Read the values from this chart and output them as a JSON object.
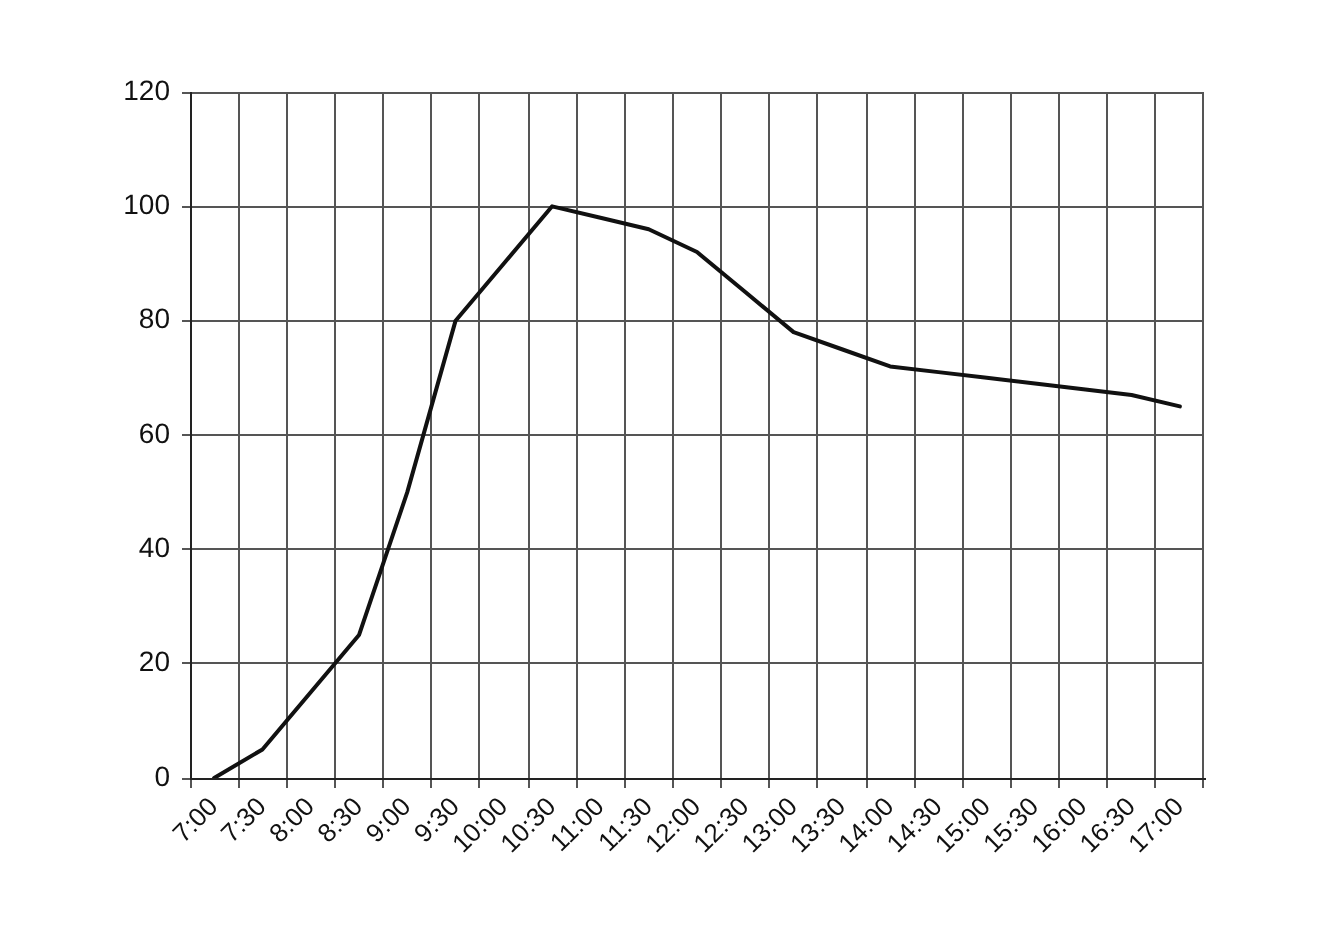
{
  "chart_data": {
    "type": "line",
    "categories": [
      "7:00",
      "7:30",
      "8:00",
      "8:30",
      "9:00",
      "9:30",
      "10:00",
      "10:30",
      "11:00",
      "11:30",
      "12:00",
      "12:30",
      "13:00",
      "13:30",
      "14:00",
      "14:30",
      "15:00",
      "15:30",
      "16:00",
      "16:30",
      "17:00"
    ],
    "series": [
      {
        "color": "#111111",
        "values": [
          0,
          5,
          15,
          25,
          50,
          80,
          90,
          100,
          98,
          96,
          92,
          85,
          78,
          75,
          72,
          71,
          70,
          69,
          68,
          67,
          65
        ]
      }
    ],
    "ylim": [
      0,
      120
    ],
    "yticks": [
      0,
      20,
      40,
      60,
      80,
      100,
      120
    ],
    "grid": true,
    "legend": false,
    "marker": "none",
    "line_style": "solid"
  }
}
